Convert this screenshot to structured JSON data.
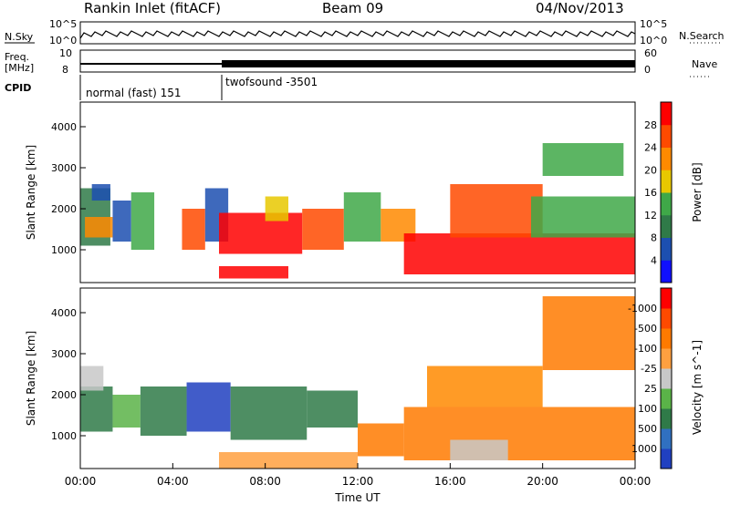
{
  "header": {
    "station": "Rankin Inlet (fitACF)",
    "beam": "Beam 09",
    "date": "04/Nov/2013"
  },
  "top_panel": {
    "nsky_label": "N.Sky",
    "nsky_hi": "10^5",
    "nsky_lo": "10^0",
    "nsearch_hi": "10^5",
    "nsearch_lo": "10^0",
    "nsearch_label": "N.Search",
    "freq_label": "Freq.",
    "freq_unit": "[MHz]",
    "freq_hi": "10",
    "freq_lo": "8",
    "nave_hi": "60",
    "nave_lo": "0",
    "nave_label": "Nave",
    "cpid_label": "CPID",
    "cpid_1": "normal (fast) 151",
    "cpid_2": "twofsound -3501"
  },
  "chart_data": [
    {
      "type": "heatmap",
      "title": "",
      "xlabel": "",
      "ylabel": "Slant Range [km]",
      "x_ticks": [
        "00:00",
        "04:00",
        "08:00",
        "12:00",
        "16:00",
        "20:00",
        "00:00"
      ],
      "y_ticks": [
        "1000",
        "2000",
        "3000",
        "4000"
      ],
      "ylim": [
        200,
        4600
      ],
      "colorbar_label": "Power [dB]",
      "colorbar_ticks": [
        "4",
        "8",
        "12",
        "16",
        "20",
        "24",
        "28"
      ],
      "colorbar_colors": [
        "#1010ff",
        "#1c4fb0",
        "#2f7a48",
        "#3fa848",
        "#e8c800",
        "#ff8a00",
        "#ff4a00",
        "#ff0000"
      ],
      "regions": [
        {
          "t0": 0.0,
          "t1": 1.3,
          "r0": 1100,
          "r1": 2500,
          "color": "#2f7a48"
        },
        {
          "t0": 0.2,
          "t1": 1.4,
          "r0": 1300,
          "r1": 1800,
          "color": "#ff8a00"
        },
        {
          "t0": 0.5,
          "t1": 1.3,
          "r0": 2200,
          "r1": 2600,
          "color": "#1c4fb0"
        },
        {
          "t0": 1.4,
          "t1": 2.2,
          "r0": 1200,
          "r1": 2200,
          "color": "#1c4fb0"
        },
        {
          "t0": 2.2,
          "t1": 3.2,
          "r0": 1000,
          "r1": 2400,
          "color": "#3fa848"
        },
        {
          "t0": 4.4,
          "t1": 5.4,
          "r0": 1000,
          "r1": 2000,
          "color": "#ff4a00"
        },
        {
          "t0": 5.4,
          "t1": 6.4,
          "r0": 1200,
          "r1": 2500,
          "color": "#1c4fb0"
        },
        {
          "t0": 6.0,
          "t1": 9.6,
          "r0": 900,
          "r1": 1900,
          "color": "#ff0000"
        },
        {
          "t0": 8.0,
          "t1": 9.0,
          "r0": 1700,
          "r1": 2300,
          "color": "#e8c800"
        },
        {
          "t0": 9.6,
          "t1": 11.4,
          "r0": 1000,
          "r1": 2000,
          "color": "#ff4a00"
        },
        {
          "t0": 11.4,
          "t1": 13.0,
          "r0": 1200,
          "r1": 2400,
          "color": "#3fa848"
        },
        {
          "t0": 13.0,
          "t1": 14.5,
          "r0": 1200,
          "r1": 2000,
          "color": "#ff8a00"
        },
        {
          "t0": 14.0,
          "t1": 24.0,
          "r0": 400,
          "r1": 1400,
          "color": "#ff0000"
        },
        {
          "t0": 16.0,
          "t1": 20.0,
          "r0": 1300,
          "r1": 2600,
          "color": "#ff4a00"
        },
        {
          "t0": 19.5,
          "t1": 24.0,
          "r0": 1300,
          "r1": 2300,
          "color": "#3fa848"
        },
        {
          "t0": 20.0,
          "t1": 23.5,
          "r0": 2800,
          "r1": 3600,
          "color": "#3fa848"
        },
        {
          "t0": 6.0,
          "t1": 9.0,
          "r0": 300,
          "r1": 600,
          "color": "#ff0000"
        }
      ]
    },
    {
      "type": "heatmap",
      "title": "",
      "xlabel": "Time UT",
      "ylabel": "Slant Range [km]",
      "x_ticks": [
        "00:00",
        "04:00",
        "08:00",
        "12:00",
        "16:00",
        "20:00",
        "00:00"
      ],
      "y_ticks": [
        "1000",
        "2000",
        "3000",
        "4000"
      ],
      "ylim": [
        200,
        4600
      ],
      "colorbar_label": "Velocity [m s^-1]",
      "colorbar_ticks": [
        "1000",
        "500",
        "100",
        "25",
        "-25",
        "-100",
        "-500",
        "-1000"
      ],
      "colorbar_colors": [
        "#2040c0",
        "#3070c0",
        "#2f7a48",
        "#5ab348",
        "#c8c8c8",
        "#ffa040",
        "#ff7a00",
        "#ff4a00",
        "#ff0000"
      ],
      "regions": [
        {
          "t0": 0.0,
          "t1": 1.4,
          "r0": 1100,
          "r1": 2200,
          "color": "#2f7a48"
        },
        {
          "t0": 0.0,
          "t1": 1.0,
          "r0": 2100,
          "r1": 2700,
          "color": "#c8c8c8"
        },
        {
          "t0": 1.4,
          "t1": 2.6,
          "r0": 1200,
          "r1": 2000,
          "color": "#5ab348"
        },
        {
          "t0": 2.6,
          "t1": 4.6,
          "r0": 1000,
          "r1": 2200,
          "color": "#2f7a48"
        },
        {
          "t0": 4.6,
          "t1": 6.5,
          "r0": 1100,
          "r1": 2300,
          "color": "#2040c0"
        },
        {
          "t0": 6.5,
          "t1": 9.8,
          "r0": 900,
          "r1": 2200,
          "color": "#2f7a48"
        },
        {
          "t0": 9.8,
          "t1": 12.0,
          "r0": 1200,
          "r1": 2100,
          "color": "#2f7a48"
        },
        {
          "t0": 12.0,
          "t1": 14.0,
          "r0": 500,
          "r1": 1300,
          "color": "#ff7a00"
        },
        {
          "t0": 14.0,
          "t1": 24.0,
          "r0": 400,
          "r1": 1700,
          "color": "#ff7a00"
        },
        {
          "t0": 16.0,
          "t1": 18.5,
          "r0": 400,
          "r1": 900,
          "color": "#c8c8c8"
        },
        {
          "t0": 15.0,
          "t1": 20.0,
          "r0": 1700,
          "r1": 2700,
          "color": "#ff8a00"
        },
        {
          "t0": 20.0,
          "t1": 24.0,
          "r0": 2600,
          "r1": 4400,
          "color": "#ff7a00"
        },
        {
          "t0": 6.0,
          "t1": 12.0,
          "r0": 200,
          "r1": 600,
          "color": "#ffa040"
        }
      ]
    }
  ]
}
